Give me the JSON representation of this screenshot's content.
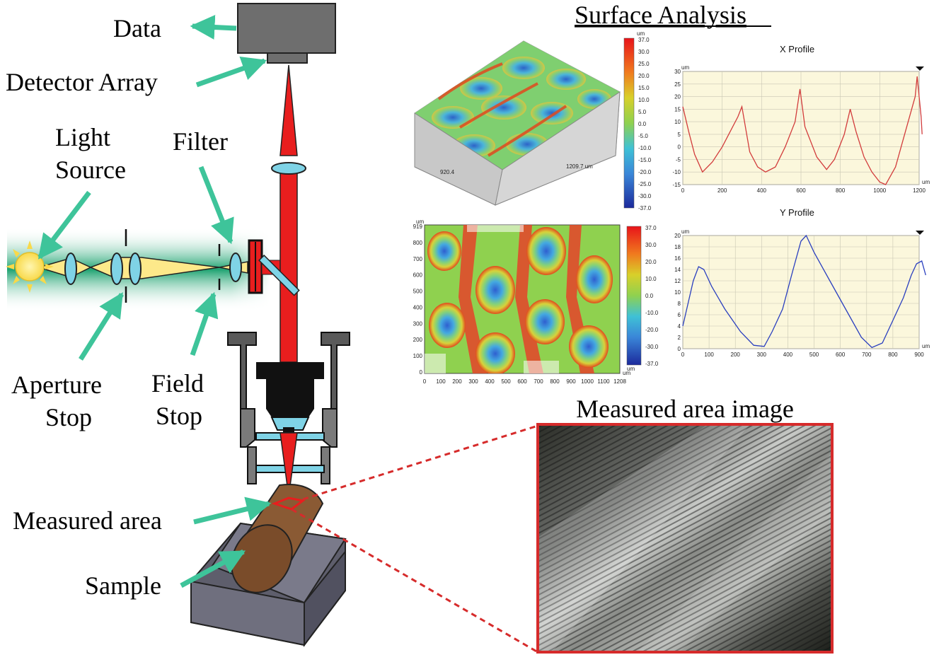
{
  "labels": {
    "data": "Data",
    "detector_array": "Detector Array",
    "light_source_line1": "Light",
    "light_source_line2": "Source",
    "filter": "Filter",
    "aperture_stop_line1": "Aperture",
    "aperture_stop_line2": "Stop",
    "field_stop_line1": "Field",
    "field_stop_line2": "Stop",
    "measured_area": "Measured area",
    "sample": "Sample"
  },
  "surface_analysis": {
    "title": "Surface Analysis",
    "plot3d_x_label": "920.4",
    "plot3d_y_label": "1209.7 um",
    "colorbar_3d": {
      "unit": "um",
      "ticks": [
        "37.0",
        "30.0",
        "25.0",
        "20.0",
        "15.0",
        "10.0",
        "5.0",
        "0.0",
        "-5.0",
        "-10.0",
        "-15.0",
        "-20.0",
        "-25.0",
        "-30.0",
        "-37.0"
      ]
    },
    "contour_map": {
      "y_unit": "um",
      "x_unit": "um",
      "y_ticks": [
        "919",
        "800",
        "700",
        "600",
        "500",
        "400",
        "300",
        "200",
        "100",
        "0"
      ],
      "x_ticks": [
        "0",
        "100",
        "200",
        "300",
        "400",
        "500",
        "600",
        "700",
        "800",
        "900",
        "1000",
        "1100",
        "1208"
      ],
      "colorbar_unit": "um",
      "colorbar_ticks": [
        "37.0",
        "30.0",
        "20.0",
        "10.0",
        "0.0",
        "-10.0",
        "-20.0",
        "-30.0",
        "-37.0"
      ]
    },
    "x_profile": {
      "title": "X Profile",
      "y_unit": "um",
      "x_unit": "um",
      "y_ticks": [
        "30",
        "25",
        "20",
        "15",
        "10",
        "5",
        "0",
        "-5",
        "-10",
        "-15"
      ],
      "x_ticks": [
        "0",
        "200",
        "400",
        "600",
        "800",
        "1000",
        "1200"
      ],
      "color": "#d23c3c",
      "points": [
        [
          0,
          16
        ],
        [
          30,
          6
        ],
        [
          60,
          -3
        ],
        [
          100,
          -10
        ],
        [
          150,
          -6
        ],
        [
          200,
          0
        ],
        [
          240,
          6
        ],
        [
          280,
          12
        ],
        [
          300,
          16
        ],
        [
          340,
          -2
        ],
        [
          380,
          -8
        ],
        [
          420,
          -10
        ],
        [
          470,
          -8
        ],
        [
          520,
          0
        ],
        [
          570,
          10
        ],
        [
          595,
          23
        ],
        [
          620,
          8
        ],
        [
          680,
          -4
        ],
        [
          730,
          -9
        ],
        [
          770,
          -5
        ],
        [
          820,
          5
        ],
        [
          850,
          15
        ],
        [
          880,
          6
        ],
        [
          920,
          -4
        ],
        [
          960,
          -10
        ],
        [
          1000,
          -14
        ],
        [
          1030,
          -15
        ],
        [
          1080,
          -8
        ],
        [
          1130,
          6
        ],
        [
          1180,
          20
        ],
        [
          1190,
          28
        ],
        [
          1210,
          12
        ],
        [
          1215,
          5
        ]
      ]
    },
    "y_profile": {
      "title": "Y Profile",
      "y_unit": "um",
      "x_unit": "um",
      "y_ticks": [
        "20",
        "18",
        "16",
        "14",
        "12",
        "10",
        "8",
        "6",
        "4",
        "2",
        "0"
      ],
      "x_ticks": [
        "0",
        "100",
        "200",
        "300",
        "400",
        "500",
        "600",
        "700",
        "800",
        "900"
      ],
      "color": "#2a3fbf",
      "points": [
        [
          0,
          4
        ],
        [
          20,
          8
        ],
        [
          40,
          12
        ],
        [
          60,
          14.5
        ],
        [
          80,
          14
        ],
        [
          110,
          11
        ],
        [
          160,
          7
        ],
        [
          220,
          3
        ],
        [
          270,
          0.6
        ],
        [
          310,
          0.4
        ],
        [
          340,
          3
        ],
        [
          380,
          7
        ],
        [
          420,
          14
        ],
        [
          450,
          19
        ],
        [
          470,
          20
        ],
        [
          500,
          17
        ],
        [
          560,
          12
        ],
        [
          620,
          7
        ],
        [
          680,
          2
        ],
        [
          720,
          0.2
        ],
        [
          760,
          1
        ],
        [
          800,
          5
        ],
        [
          840,
          9
        ],
        [
          870,
          13
        ],
        [
          890,
          15
        ],
        [
          910,
          15.5
        ],
        [
          925,
          13
        ]
      ]
    }
  },
  "measured_area_image": {
    "title": "Measured area image"
  },
  "colors": {
    "arrow": "#3ec49a",
    "beam_red": "#e81e1e",
    "lens_blue": "#7fd3e6",
    "source_yellow": "#fde98a",
    "field_green": "#1fa371",
    "sample_brown": "#8a5a34",
    "holder_gray": "#63636f",
    "frame_red": "#d62b2b"
  }
}
